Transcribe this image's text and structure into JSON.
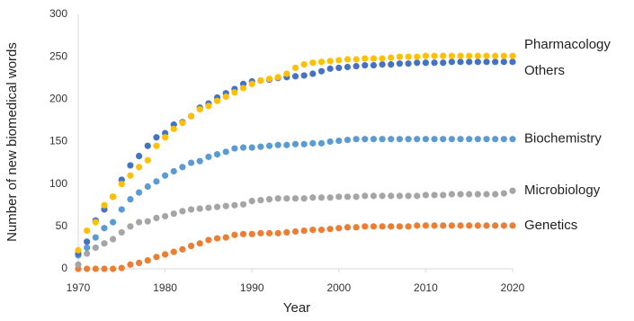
{
  "chart_data": {
    "type": "scatter",
    "x_label": "Year",
    "y_label": "Number of new biomedical words",
    "xlim": [
      1970,
      2020
    ],
    "xticks": [
      1970,
      1980,
      1990,
      2000,
      2010,
      2020
    ],
    "ylim": [
      0,
      300
    ],
    "yticks": [
      0,
      50,
      100,
      150,
      200,
      250,
      300
    ],
    "grid": false,
    "x": [
      1970,
      1971,
      1972,
      1973,
      1974,
      1975,
      1976,
      1977,
      1978,
      1979,
      1980,
      1981,
      1982,
      1983,
      1984,
      1985,
      1986,
      1987,
      1988,
      1989,
      1990,
      1991,
      1992,
      1993,
      1994,
      1995,
      1996,
      1997,
      1998,
      1999,
      2000,
      2001,
      2002,
      2003,
      2004,
      2005,
      2006,
      2007,
      2008,
      2009,
      2010,
      2011,
      2012,
      2013,
      2014,
      2015,
      2016,
      2017,
      2018,
      2019,
      2020
    ],
    "series": [
      {
        "name": "Genetics",
        "color": "#ED7D31",
        "values": [
          0,
          0,
          0,
          0,
          0,
          1,
          5,
          7,
          10,
          14,
          17,
          20,
          23,
          27,
          30,
          34,
          36,
          37,
          40,
          41,
          41,
          42,
          42,
          42,
          43,
          44,
          45,
          46,
          46,
          47,
          48,
          49,
          49,
          50,
          50,
          50,
          50,
          50,
          50,
          51,
          51,
          51,
          51,
          51,
          51,
          51,
          51,
          51,
          51,
          51,
          51
        ]
      },
      {
        "name": "Microbiology",
        "color": "#A5A5A5",
        "values": [
          5,
          18,
          25,
          30,
          35,
          43,
          50,
          55,
          56,
          60,
          62,
          65,
          68,
          70,
          71,
          72,
          73,
          74,
          75,
          76,
          80,
          81,
          82,
          83,
          83,
          83,
          83,
          84,
          84,
          84,
          85,
          85,
          85,
          86,
          86,
          86,
          86,
          86,
          86,
          86,
          87,
          87,
          87,
          88,
          88,
          88,
          88,
          88,
          88,
          89,
          92
        ]
      },
      {
        "name": "Biochemistry",
        "color": "#5B9BD5",
        "values": [
          16,
          25,
          37,
          48,
          55,
          70,
          82,
          90,
          97,
          103,
          110,
          115,
          120,
          125,
          127,
          132,
          135,
          138,
          142,
          143,
          143,
          144,
          145,
          146,
          146,
          147,
          147,
          148,
          148,
          150,
          151,
          152,
          153,
          153,
          153,
          153,
          153,
          153,
          153,
          153,
          153,
          153,
          153,
          153,
          153,
          153,
          153,
          153,
          153,
          153,
          153
        ]
      },
      {
        "name": "Others",
        "color": "#4472C4",
        "values": [
          18,
          32,
          57,
          70,
          85,
          105,
          122,
          133,
          145,
          155,
          160,
          170,
          173,
          180,
          190,
          195,
          202,
          207,
          212,
          218,
          221,
          222,
          223,
          225,
          226,
          227,
          228,
          230,
          233,
          236,
          237,
          238,
          239,
          240,
          240,
          241,
          241,
          242,
          242,
          243,
          243,
          243,
          243,
          244,
          244,
          244,
          244,
          244,
          244,
          244,
          244
        ]
      },
      {
        "name": "Pharmacology",
        "color": "#FFC000",
        "values": [
          22,
          45,
          55,
          75,
          85,
          100,
          110,
          120,
          128,
          145,
          155,
          165,
          172,
          180,
          188,
          192,
          198,
          203,
          208,
          213,
          218,
          222,
          224,
          226,
          230,
          237,
          241,
          243,
          244,
          245,
          246,
          247,
          247,
          248,
          248,
          248,
          249,
          250,
          250,
          250,
          251,
          251,
          251,
          251,
          251,
          251,
          251,
          251,
          251,
          251,
          251
        ]
      }
    ]
  }
}
